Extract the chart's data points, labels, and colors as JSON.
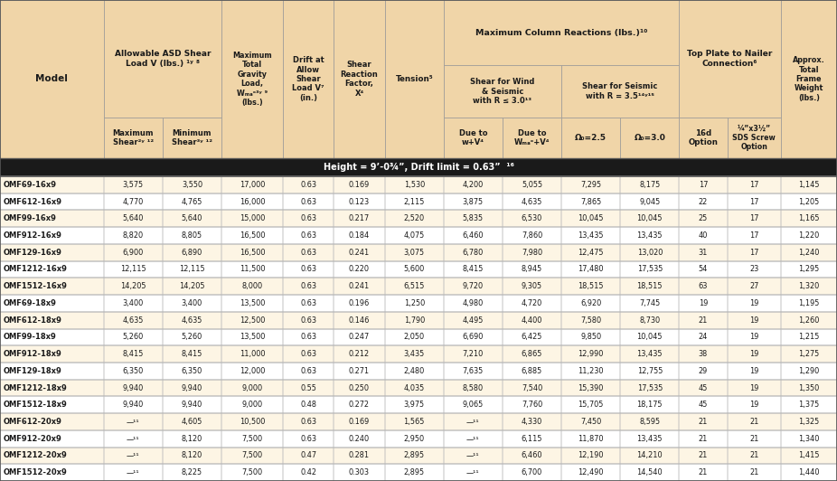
{
  "section_header": "Height = 9’-0¾”, Drift limit = 0.63”  ¹⁶",
  "header_bg": "#f0d5a8",
  "row_colors": [
    "#fdf5e4",
    "#ffffff"
  ],
  "dark_bar": "#1a1a1a",
  "border_color": "#999999",
  "text_color": "#1a1a1a",
  "col_widths_rel": [
    1.55,
    0.88,
    0.88,
    0.92,
    0.76,
    0.76,
    0.88,
    0.88,
    0.88,
    0.88,
    0.88,
    0.72,
    0.8,
    0.84
  ],
  "rows": [
    [
      "OMF69-16x9",
      "3,575",
      "3,550",
      "17,000",
      "0.63",
      "0.169",
      "1,530",
      "4,200",
      "5,055",
      "7,295",
      "8,175",
      "17",
      "17",
      "1,145"
    ],
    [
      "OMF612-16x9",
      "4,770",
      "4,765",
      "16,000",
      "0.63",
      "0.123",
      "2,115",
      "3,875",
      "4,635",
      "7,865",
      "9,045",
      "22",
      "17",
      "1,205"
    ],
    [
      "OMF99-16x9",
      "5,640",
      "5,640",
      "15,000",
      "0.63",
      "0.217",
      "2,520",
      "5,835",
      "6,530",
      "10,045",
      "10,045",
      "25",
      "17",
      "1,165"
    ],
    [
      "OMF912-16x9",
      "8,820",
      "8,805",
      "16,500",
      "0.63",
      "0.184",
      "4,075",
      "6,460",
      "7,860",
      "13,435",
      "13,435",
      "40",
      "17",
      "1,220"
    ],
    [
      "OMF129-16x9",
      "6,900",
      "6,890",
      "16,500",
      "0.63",
      "0.241",
      "3,075",
      "6,780",
      "7,980",
      "12,475",
      "13,020",
      "31",
      "17",
      "1,240"
    ],
    [
      "OMF1212-16x9",
      "12,115",
      "12,115",
      "11,500",
      "0.63",
      "0.220",
      "5,600",
      "8,415",
      "8,945",
      "17,480",
      "17,535",
      "54",
      "23",
      "1,295"
    ],
    [
      "OMF1512-16x9",
      "14,205",
      "14,205",
      "8,000",
      "0.63",
      "0.241",
      "6,515",
      "9,720",
      "9,305",
      "18,515",
      "18,515",
      "63",
      "27",
      "1,320"
    ],
    [
      "OMF69-18x9",
      "3,400",
      "3,400",
      "13,500",
      "0.63",
      "0.196",
      "1,250",
      "4,980",
      "4,720",
      "6,920",
      "7,745",
      "19",
      "19",
      "1,195"
    ],
    [
      "OMF612-18x9",
      "4,635",
      "4,635",
      "12,500",
      "0.63",
      "0.146",
      "1,790",
      "4,495",
      "4,400",
      "7,580",
      "8,730",
      "21",
      "19",
      "1,260"
    ],
    [
      "OMF99-18x9",
      "5,260",
      "5,260",
      "13,500",
      "0.63",
      "0.247",
      "2,050",
      "6,690",
      "6,425",
      "9,850",
      "10,045",
      "24",
      "19",
      "1,215"
    ],
    [
      "OMF912-18x9",
      "8,415",
      "8,415",
      "11,000",
      "0.63",
      "0.212",
      "3,435",
      "7,210",
      "6,865",
      "12,990",
      "13,435",
      "38",
      "19",
      "1,275"
    ],
    [
      "OMF129-18x9",
      "6,350",
      "6,350",
      "12,000",
      "0.63",
      "0.271",
      "2,480",
      "7,635",
      "6,885",
      "11,230",
      "12,755",
      "29",
      "19",
      "1,290"
    ],
    [
      "OMF1212-18x9",
      "9,940",
      "9,940",
      "9,000",
      "0.55",
      "0.250",
      "4,035",
      "8,580",
      "7,540",
      "15,390",
      "17,535",
      "45",
      "19",
      "1,350"
    ],
    [
      "OMF1512-18x9",
      "9,940",
      "9,940",
      "9,000",
      "0.48",
      "0.272",
      "3,975",
      "9,065",
      "7,760",
      "15,705",
      "18,175",
      "45",
      "19",
      "1,375"
    ],
    [
      "OMF612-20x9",
      "—¹¹",
      "4,605",
      "10,500",
      "0.63",
      "0.169",
      "1,565",
      "—¹¹",
      "4,330",
      "7,450",
      "8,595",
      "21",
      "21",
      "1,325"
    ],
    [
      "OMF912-20x9",
      "—¹¹",
      "8,120",
      "7,500",
      "0.63",
      "0.240",
      "2,950",
      "—¹¹",
      "6,115",
      "11,870",
      "13,435",
      "21",
      "21",
      "1,340"
    ],
    [
      "OMF1212-20x9",
      "—¹¹",
      "8,120",
      "7,500",
      "0.47",
      "0.281",
      "2,895",
      "—¹¹",
      "6,460",
      "12,190",
      "14,210",
      "21",
      "21",
      "1,415"
    ],
    [
      "OMF1512-20x9",
      "—¹¹",
      "8,225",
      "7,500",
      "0.42",
      "0.303",
      "2,895",
      "—¹¹",
      "6,700",
      "12,490",
      "14,540",
      "21",
      "21",
      "1,440"
    ]
  ]
}
